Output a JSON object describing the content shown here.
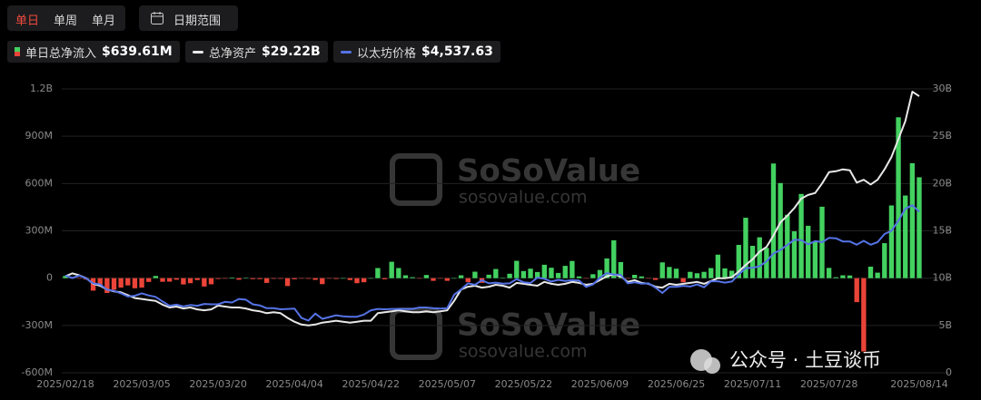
{
  "toolbar": {
    "tabs": [
      "单日",
      "单周",
      "单月"
    ],
    "date_button": "日期范围"
  },
  "watermark": {
    "brand": "SoSoValue",
    "url": "sosovalue.com"
  },
  "overlay": "公众号 · 土豆谈币",
  "chart_data": {
    "type": "bar-line",
    "categories": [
      "2025/02/18",
      null,
      null,
      null,
      null,
      null,
      null,
      null,
      null,
      null,
      null,
      "2025/03/05",
      null,
      null,
      null,
      null,
      null,
      null,
      null,
      null,
      null,
      null,
      "2025/03/20",
      null,
      null,
      null,
      null,
      null,
      null,
      null,
      null,
      null,
      null,
      "2025/04/04",
      null,
      null,
      null,
      null,
      null,
      null,
      null,
      null,
      null,
      null,
      "2025/04/22",
      null,
      null,
      null,
      null,
      null,
      null,
      null,
      null,
      null,
      null,
      "2025/05/07",
      null,
      null,
      null,
      null,
      null,
      null,
      null,
      null,
      null,
      null,
      "2025/05/22",
      null,
      null,
      null,
      null,
      null,
      null,
      null,
      null,
      null,
      null,
      "2025/06/09",
      null,
      null,
      null,
      null,
      null,
      null,
      null,
      null,
      null,
      null,
      "2025/06/25",
      null,
      null,
      null,
      null,
      null,
      null,
      null,
      null,
      null,
      null,
      "2025/07/11",
      null,
      null,
      null,
      null,
      null,
      null,
      null,
      null,
      null,
      null,
      "2025/07/28",
      null,
      null,
      null,
      null,
      null,
      null,
      null,
      null,
      null,
      null,
      null,
      null,
      "2025/08/14"
    ],
    "series": [
      {
        "name": "单日总净流入",
        "legend_label": "$639.61M",
        "type": "bar",
        "color": "#43d160",
        "negative_color": "#ea4438",
        "values": [
          14,
          5,
          -2,
          -9,
          -79,
          -50,
          -94,
          -73,
          -60,
          -46,
          -64,
          -60,
          -24,
          14,
          -23,
          -22,
          -10,
          -40,
          -32,
          -12,
          -53,
          -39,
          -5,
          -3,
          4,
          -10,
          3,
          -6,
          -6,
          -30,
          -4,
          -4,
          -50,
          -7,
          -3,
          -4,
          -11,
          -38,
          -3,
          -5,
          0,
          -12,
          -32,
          -26,
          0,
          64,
          -7,
          104,
          64,
          18,
          6,
          -3,
          20,
          -17,
          -3,
          -17,
          0,
          18,
          -25,
          41,
          -30,
          22,
          58,
          2,
          28,
          110,
          45,
          60,
          39,
          85,
          66,
          33,
          78,
          109,
          11,
          -2,
          25,
          52,
          125,
          240,
          102,
          -2,
          21,
          11,
          -2,
          -11,
          100,
          71,
          60,
          -26,
          40,
          31,
          40,
          64,
          149,
          62,
          47,
          211,
          383,
          205,
          259,
          192,
          727,
          603,
          402,
          297,
          534,
          332,
          231,
          453,
          65,
          6,
          18,
          17,
          -152,
          -465,
          73,
          35,
          222,
          461,
          1020,
          524,
          729,
          639.61
        ]
      },
      {
        "name": "总净资产",
        "legend_label": "$29.22B",
        "type": "line",
        "axis": "y2",
        "color": "#e8e8e8",
        "values": [
          10.2,
          10.5,
          10.3,
          10.0,
          9.4,
          9.2,
          8.8,
          8.6,
          8.5,
          8.2,
          7.9,
          7.8,
          7.7,
          7.6,
          7.2,
          6.9,
          7.0,
          6.8,
          6.9,
          6.7,
          6.6,
          6.7,
          7.1,
          7.0,
          6.9,
          6.9,
          6.8,
          6.6,
          6.5,
          6.3,
          6.4,
          6.3,
          5.8,
          5.4,
          5.1,
          5.0,
          5.1,
          5.3,
          5.4,
          5.5,
          5.4,
          5.3,
          5.4,
          5.5,
          5.5,
          6.3,
          6.4,
          6.5,
          6.6,
          6.5,
          6.4,
          6.4,
          6.5,
          6.4,
          6.5,
          6.6,
          7.6,
          8.8,
          9.1,
          9.2,
          9.0,
          9.1,
          9.3,
          9.2,
          9.0,
          9.5,
          9.4,
          9.3,
          9.2,
          9.6,
          9.4,
          9.3,
          9.4,
          9.6,
          9.5,
          9.3,
          9.4,
          9.8,
          10.2,
          10.4,
          10.2,
          9.6,
          9.8,
          9.5,
          9.4,
          9.1,
          9.0,
          9.4,
          9.3,
          9.4,
          9.5,
          9.6,
          9.4,
          9.7,
          10.0,
          10.0,
          10.1,
          10.7,
          11.4,
          12.0,
          12.8,
          13.3,
          14.5,
          15.9,
          16.6,
          17.4,
          18.4,
          18.8,
          19.0,
          20.0,
          21.2,
          21.3,
          21.5,
          21.4,
          20.1,
          20.4,
          19.9,
          20.4,
          21.5,
          22.8,
          24.7,
          26.6,
          29.7,
          29.22
        ]
      },
      {
        "name": "以太坊价格",
        "legend_label": "$4,537.63",
        "type": "line",
        "axis": "y3",
        "color": "#5573e6",
        "values": [
          2740,
          2670,
          2740,
          2660,
          2520,
          2490,
          2340,
          2310,
          2240,
          2150,
          2170,
          2240,
          2180,
          2140,
          2010,
          1890,
          1920,
          1870,
          1910,
          1890,
          1940,
          1930,
          1930,
          2000,
          1980,
          2080,
          2060,
          1930,
          1900,
          1820,
          1820,
          1790,
          1800,
          1810,
          1550,
          1470,
          1670,
          1520,
          1570,
          1620,
          1590,
          1580,
          1580,
          1640,
          1760,
          1800,
          1790,
          1800,
          1800,
          1800,
          1800,
          1840,
          1840,
          1820,
          1810,
          1820,
          2200,
          2350,
          2520,
          2480,
          2610,
          2520,
          2540,
          2510,
          2520,
          2640,
          2550,
          2530,
          2680,
          2650,
          2570,
          2620,
          2590,
          2610,
          2600,
          2420,
          2490,
          2680,
          2810,
          2770,
          2760,
          2520,
          2550,
          2510,
          2520,
          2400,
          2250,
          2420,
          2420,
          2450,
          2430,
          2490,
          2410,
          2580,
          2580,
          2540,
          2570,
          2770,
          2950,
          2960,
          3000,
          3140,
          3360,
          3460,
          3600,
          3750,
          3740,
          3620,
          3710,
          3680,
          3800,
          3790,
          3700,
          3700,
          3610,
          3720,
          3610,
          3680,
          3910,
          4000,
          4290,
          4620,
          4720,
          4537.63
        ]
      }
    ],
    "ylim": [
      -600,
      1200
    ],
    "yticks": [
      {
        "value": -600,
        "label": "-600M"
      },
      {
        "value": -300,
        "label": "-300M"
      },
      0,
      {
        "value": 300,
        "label": "300M"
      },
      {
        "value": 600,
        "label": "600M"
      },
      {
        "value": 900,
        "label": "900M"
      },
      {
        "value": 1200,
        "label": "1.2B"
      }
    ],
    "y2lim": [
      0,
      30
    ],
    "y2ticks": [
      0,
      {
        "value": 5,
        "label": "5B"
      },
      {
        "value": 10,
        "label": "10B"
      },
      {
        "value": 15,
        "label": "15B"
      },
      {
        "value": 20,
        "label": "20B"
      },
      {
        "value": 25,
        "label": "25B"
      },
      {
        "value": 30,
        "label": "30B"
      }
    ],
    "y3lim": [
      0,
      8000
    ],
    "grid": true
  }
}
